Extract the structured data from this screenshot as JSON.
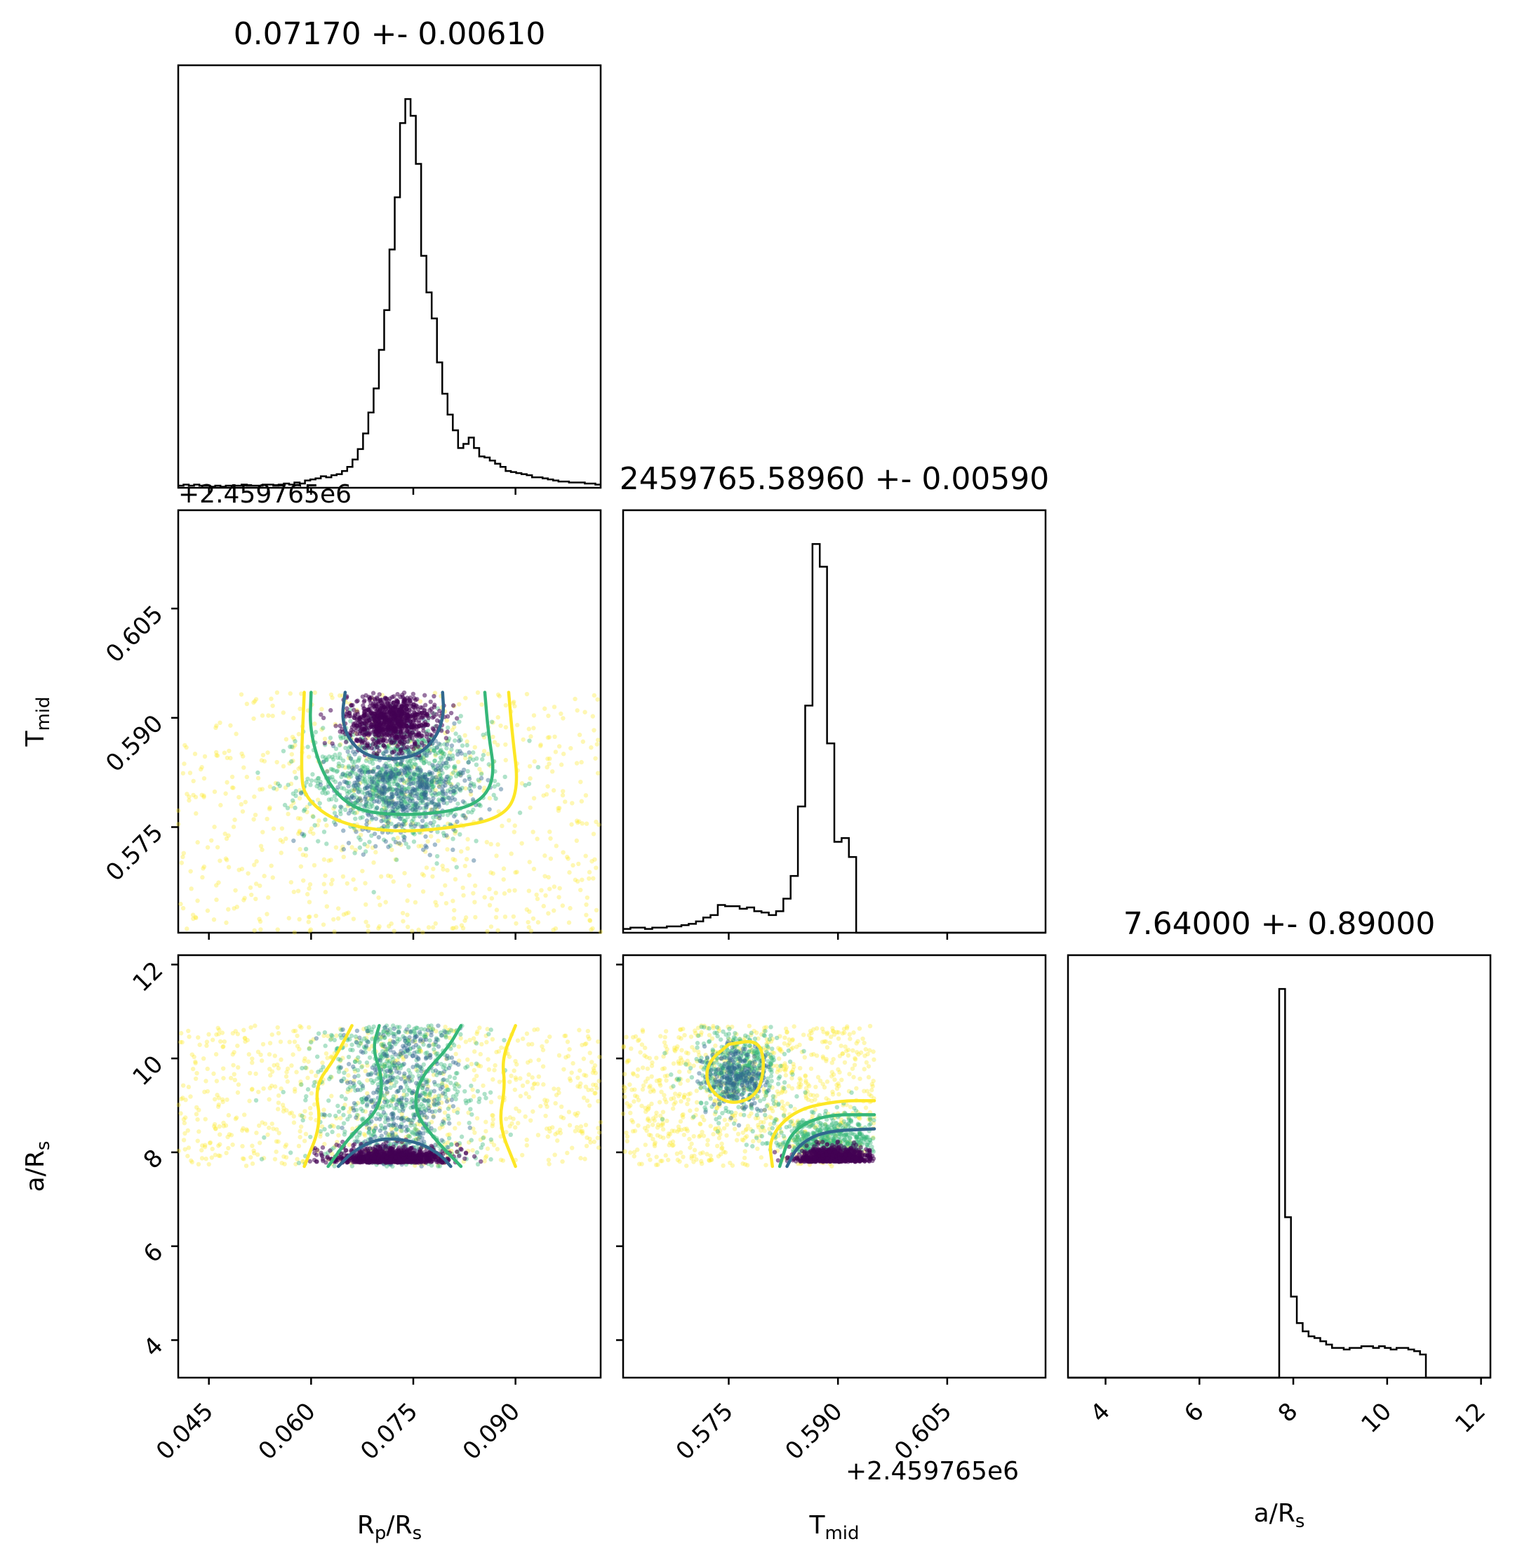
{
  "figure": {
    "type": "corner_plot",
    "parameters": [
      {
        "key": "rp",
        "label_main": "R",
        "label_sub": "p",
        "label_main2": "/R",
        "label_sub2": "s",
        "title": "0.07170 +- 0.00610",
        "range": [
          0.0405,
          0.1025
        ],
        "ticks": [
          "0.045",
          "0.060",
          "0.075",
          "0.090"
        ],
        "tick_values": [
          0.045,
          0.06,
          0.075,
          0.09
        ]
      },
      {
        "key": "tmid",
        "label_main": "T",
        "label_sub": "mid",
        "label_main2": "",
        "label_sub2": "",
        "title": "2459765.58960 +- 0.00590",
        "range": [
          0.5605,
          0.6185
        ],
        "ticks": [
          "0.575",
          "0.590",
          "0.605"
        ],
        "tick_values": [
          0.575,
          0.59,
          0.605
        ],
        "offset_text": "+2.459765e6"
      },
      {
        "key": "ars",
        "label_main": "a/R",
        "label_sub": "s",
        "label_main2": "",
        "label_sub2": "",
        "title": "7.64000 +- 0.89000",
        "range": [
          3.2,
          12.2
        ],
        "ticks": [
          "4",
          "6",
          "8",
          "10",
          "12"
        ],
        "tick_values": [
          4,
          6,
          8,
          10,
          12
        ]
      }
    ],
    "colors": {
      "dark": "#440154",
      "blue": "#31688e",
      "green": "#35b779",
      "yellow": "#fde725",
      "line": "#000000"
    }
  },
  "chart_data": [
    {
      "type": "histogram",
      "panel": "Rp/Rs marginal",
      "title": "0.07170 +- 0.00610",
      "x_range": [
        0.0405,
        0.1025
      ],
      "bin_edges_start": 0.0405,
      "bin_width": 0.000775,
      "counts": [
        2,
        3,
        2,
        3,
        2,
        2,
        1,
        2,
        1,
        2,
        2,
        2,
        3,
        2,
        2,
        2,
        3,
        3,
        2,
        3,
        4,
        3,
        5,
        4,
        7,
        8,
        9,
        11,
        10,
        12,
        13,
        16,
        20,
        27,
        37,
        52,
        72,
        95,
        132,
        170,
        228,
        278,
        349,
        372,
        356,
        310,
        222,
        187,
        162,
        120,
        90,
        70,
        55,
        38,
        42,
        48,
        38,
        30,
        29,
        26,
        23,
        20,
        16,
        15,
        14,
        13,
        12,
        10,
        10,
        9,
        8,
        7,
        6,
        6,
        5,
        5,
        5,
        4,
        4,
        3
      ]
    },
    {
      "type": "histogram",
      "panel": "Tmid marginal",
      "title": "2459765.58960 +- 0.00590",
      "x_range": [
        0.5605,
        0.6185
      ],
      "bin_edges_start": 0.5605,
      "bin_width": 0.001,
      "counts": [
        3,
        4,
        4,
        3,
        4,
        4,
        5,
        5,
        6,
        7,
        9,
        12,
        14,
        22,
        21,
        21,
        19,
        20,
        17,
        16,
        14,
        17,
        27,
        45,
        100,
        180,
        308,
        290,
        150,
        72,
        75,
        60,
        0,
        0,
        0,
        0,
        0,
        0,
        0,
        0,
        0,
        0,
        0,
        0,
        0,
        0,
        0,
        0,
        0,
        0,
        0,
        0,
        0,
        0,
        0,
        0,
        0,
        0
      ]
    },
    {
      "type": "histogram",
      "panel": "a/Rs marginal",
      "title": "7.64000 +- 0.89000",
      "x_range": [
        3.2,
        12.2
      ],
      "bin_edges_start": 3.2,
      "bin_width": 0.125,
      "counts": [
        0,
        0,
        0,
        0,
        0,
        0,
        0,
        0,
        0,
        0,
        0,
        0,
        0,
        0,
        0,
        0,
        0,
        0,
        0,
        0,
        0,
        0,
        0,
        0,
        0,
        0,
        0,
        0,
        0,
        0,
        0,
        0,
        0,
        0,
        0,
        0,
        235,
        97,
        49,
        33,
        28,
        25,
        24,
        22,
        20,
        18,
        18,
        17,
        18,
        18,
        19,
        19,
        18,
        19,
        18,
        17,
        18,
        18,
        17,
        16,
        14,
        0,
        0,
        0,
        0,
        0,
        0,
        0,
        0,
        0,
        0,
        0
      ]
    },
    {
      "type": "scatter+contour",
      "panel": "Tmid vs Rp/Rs",
      "x_range": [
        0.0405,
        0.1025
      ],
      "y_range": [
        0.5605,
        0.6185
      ],
      "points_extent": {
        "x": [
          0.0405,
          0.1025
        ],
        "y": [
          0.5605,
          0.5935
        ]
      },
      "dense_core": {
        "x": 0.0717,
        "y": 0.5896
      },
      "contours": [
        {
          "level": "inner",
          "color": "#31688e",
          "path": [
            [
              0.065,
              0.5935
            ],
            [
              0.0645,
              0.59
            ],
            [
              0.0655,
              0.587
            ],
            [
              0.068,
              0.5848
            ],
            [
              0.072,
              0.5842
            ],
            [
              0.076,
              0.585
            ],
            [
              0.0785,
              0.5875
            ],
            [
              0.0795,
              0.5905
            ],
            [
              0.0793,
              0.5935
            ]
          ]
        },
        {
          "level": "middle",
          "color": "#35b779",
          "path": [
            [
              0.06,
              0.5935
            ],
            [
              0.0598,
              0.588
            ],
            [
              0.062,
              0.5815
            ],
            [
              0.066,
              0.5775
            ],
            [
              0.072,
              0.5766
            ],
            [
              0.08,
              0.577
            ],
            [
              0.085,
              0.5785
            ],
            [
              0.087,
              0.582
            ],
            [
              0.086,
              0.588
            ],
            [
              0.0855,
              0.5935
            ]
          ]
        },
        {
          "level": "outer",
          "color": "#fde725",
          "path": [
            [
              0.059,
              0.5935
            ],
            [
              0.0585,
              0.583
            ],
            [
              0.059,
              0.579
            ],
            [
              0.064,
              0.5755
            ],
            [
              0.072,
              0.5743
            ],
            [
              0.08,
              0.5748
            ],
            [
              0.088,
              0.5762
            ],
            [
              0.0905,
              0.58
            ],
            [
              0.0895,
              0.588
            ],
            [
              0.089,
              0.5935
            ]
          ]
        }
      ]
    },
    {
      "type": "scatter+contour",
      "panel": "a/Rs vs Rp/Rs",
      "x_range": [
        0.0405,
        0.1025
      ],
      "y_range": [
        3.2,
        12.2
      ],
      "points_extent": {
        "x": [
          0.0405,
          0.1025
        ],
        "y": [
          7.7,
          10.7
        ]
      },
      "dense_core": {
        "x": 0.0717,
        "y": 7.85
      },
      "contours": [
        {
          "level": "inner",
          "color": "#31688e",
          "path": [
            [
              0.064,
              7.7
            ],
            [
              0.066,
              8.0
            ],
            [
              0.069,
              8.25
            ],
            [
              0.072,
              8.3
            ],
            [
              0.076,
              8.2
            ],
            [
              0.079,
              7.95
            ],
            [
              0.0805,
              7.7
            ]
          ]
        },
        {
          "level": "middle-left",
          "color": "#35b779",
          "path": [
            [
              0.0625,
              7.7
            ],
            [
              0.066,
              8.4
            ],
            [
              0.07,
              8.9
            ],
            [
              0.0705,
              9.6
            ],
            [
              0.069,
              10.2
            ],
            [
              0.07,
              10.7
            ]
          ]
        },
        {
          "level": "middle-right",
          "color": "#35b779",
          "path": [
            [
              0.082,
              7.7
            ],
            [
              0.078,
              8.3
            ],
            [
              0.075,
              8.9
            ],
            [
              0.076,
              9.6
            ],
            [
              0.08,
              10.2
            ],
            [
              0.082,
              10.7
            ]
          ]
        },
        {
          "level": "outer-left",
          "color": "#fde725",
          "path": [
            [
              0.059,
              7.7
            ],
            [
              0.0615,
              8.6
            ],
            [
              0.0605,
              9.4
            ],
            [
              0.0635,
              10.0
            ],
            [
              0.066,
              10.7
            ]
          ]
        },
        {
          "level": "outer-right",
          "color": "#fde725",
          "path": [
            [
              0.09,
              7.7
            ],
            [
              0.0875,
              8.6
            ],
            [
              0.0885,
              9.4
            ],
            [
              0.088,
              10.0
            ],
            [
              0.09,
              10.7
            ]
          ]
        }
      ]
    },
    {
      "type": "scatter+contour",
      "panel": "a/Rs vs Tmid",
      "x_range": [
        0.5605,
        0.6185
      ],
      "y_range": [
        3.2,
        12.2
      ],
      "points_extent": {
        "x": [
          0.5605,
          0.595
        ],
        "y": [
          7.7,
          10.7
        ]
      },
      "dense_core": {
        "x": 0.5895,
        "y": 7.85
      },
      "contours": [
        {
          "level": "inner",
          "color": "#31688e",
          "path": [
            [
              0.583,
              7.7
            ],
            [
              0.5845,
              8.15
            ],
            [
              0.588,
              8.45
            ],
            [
              0.595,
              8.5
            ]
          ]
        },
        {
          "level": "middle",
          "color": "#35b779",
          "path": [
            [
              0.582,
              7.7
            ],
            [
              0.5835,
              8.45
            ],
            [
              0.588,
              8.8
            ],
            [
              0.595,
              8.8
            ]
          ]
        },
        {
          "level": "outer-lower",
          "color": "#fde725",
          "path": [
            [
              0.581,
              7.7
            ],
            [
              0.5805,
              8.3
            ],
            [
              0.584,
              8.9
            ],
            [
              0.59,
              9.1
            ],
            [
              0.595,
              9.1
            ]
          ]
        },
        {
          "level": "outer-upper",
          "color": "#fde725",
          "path": [
            [
              0.575,
              10.3
            ],
            [
              0.572,
              9.9
            ],
            [
              0.572,
              9.4
            ],
            [
              0.575,
              9.0
            ],
            [
              0.579,
              9.2
            ],
            [
              0.58,
              9.9
            ],
            [
              0.579,
              10.4
            ],
            [
              0.575,
              10.3
            ]
          ]
        }
      ]
    }
  ]
}
